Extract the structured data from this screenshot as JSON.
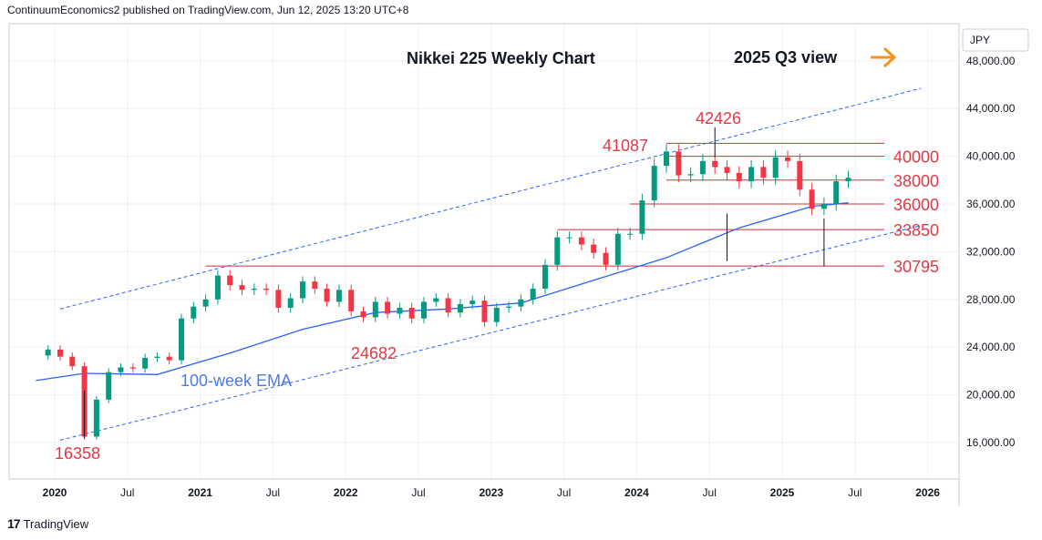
{
  "header": {
    "publisher_line": "ContinuumEconomics2 published on TradingView.com, Jun 12, 2025 13:20 UTC+8"
  },
  "footer": {
    "logo_mark": "17",
    "brand": "TradingView"
  },
  "colors": {
    "candle_up": "#089981",
    "candle_down": "#f23645",
    "ema": "#2962ff",
    "level_line": "#e0283a",
    "channel": "#2962ff",
    "label_red": "#e03a47",
    "arrow": "#f7931a",
    "grid": "#eef0f3",
    "axis_border": "#c9ccd3"
  },
  "chart_data": {
    "type": "candlestick",
    "title": "Nikkei 225 Weekly Chart",
    "subtitle": "2025 Q3 view",
    "currency": "JPY",
    "x_axis_labels": [
      "2020",
      "Jul",
      "2021",
      "Jul",
      "2022",
      "Jul",
      "2023",
      "Jul",
      "2024",
      "Jul",
      "2025",
      "Jul",
      "2026"
    ],
    "x_axis_label_dates": [
      "2020-01",
      "2020-07",
      "2021-01",
      "2021-07",
      "2022-01",
      "2022-07",
      "2023-01",
      "2023-07",
      "2024-01",
      "2024-07",
      "2025-01",
      "2025-07",
      "2026-01"
    ],
    "bold_x_labels": [
      "2020",
      "2021",
      "2022",
      "2023",
      "2024",
      "2025",
      "2026"
    ],
    "y_axis_ticks": [
      "16,000.00",
      "20,000.00",
      "24,000.00",
      "28,000.00",
      "32,000.00",
      "36,000.00",
      "40,000.00",
      "44,000.00",
      "48,000.00"
    ],
    "y_tick_values": [
      16000,
      20000,
      24000,
      28000,
      32000,
      36000,
      40000,
      44000,
      48000
    ],
    "ylim": [
      12000,
      51000
    ],
    "xlim": [
      "2019-11",
      "2026-04"
    ],
    "grid": true,
    "horizontal_levels": [
      {
        "label": "41087",
        "value": 41087,
        "from": "2024-03",
        "to": "2025-12"
      },
      {
        "label": "40000",
        "value": 40000,
        "from": "2024-03",
        "to": "2025-12"
      },
      {
        "label": "38000",
        "value": 38000,
        "from": "2024-03",
        "to": "2025-12"
      },
      {
        "label": "36000",
        "value": 36000,
        "from": "2023-12",
        "to": "2025-12"
      },
      {
        "label": "33850",
        "value": 33850,
        "from": "2023-06",
        "to": "2025-12"
      },
      {
        "label": "30795",
        "value": 30795,
        "from": "2021-01",
        "to": "2025-12"
      }
    ],
    "point_labels": [
      {
        "text": "16358",
        "value": 16358,
        "date": "2020-03"
      },
      {
        "text": "24682",
        "value": 24682,
        "date": "2022-03"
      },
      {
        "text": "42426",
        "value": 42426,
        "date": "2024-07"
      },
      {
        "text": "41087",
        "value": 41087,
        "date": "2024-03"
      }
    ],
    "ema_label": "100-week EMA",
    "ema_series": [
      [
        "2019-11",
        21200
      ],
      [
        "2020-03",
        21800
      ],
      [
        "2020-09",
        21700
      ],
      [
        "2021-03",
        23500
      ],
      [
        "2021-09",
        25500
      ],
      [
        "2022-03",
        26900
      ],
      [
        "2022-09",
        27200
      ],
      [
        "2023-03",
        27700
      ],
      [
        "2023-09",
        29600
      ],
      [
        "2024-03",
        31500
      ],
      [
        "2024-09",
        34000
      ],
      [
        "2025-03",
        35800
      ],
      [
        "2025-06",
        36100
      ]
    ],
    "channel_upper": [
      [
        "2020-01",
        27200
      ],
      [
        "2025-12",
        45700
      ]
    ],
    "channel_lower": [
      [
        "2020-01",
        16200
      ],
      [
        "2025-12",
        34200
      ]
    ],
    "price_series": [
      [
        "2019-11",
        23300
      ],
      [
        "2019-12",
        23800
      ],
      [
        "2020-01",
        23200
      ],
      [
        "2020-02",
        22400
      ],
      [
        "2020-03",
        16500
      ],
      [
        "2020-04",
        19600
      ],
      [
        "2020-05",
        21900
      ],
      [
        "2020-06",
        22300
      ],
      [
        "2020-07",
        22200
      ],
      [
        "2020-08",
        23100
      ],
      [
        "2020-09",
        23200
      ],
      [
        "2020-10",
        22900
      ],
      [
        "2020-11",
        26400
      ],
      [
        "2020-12",
        27400
      ],
      [
        "2021-01",
        28000
      ],
      [
        "2021-02",
        30000
      ],
      [
        "2021-03",
        29200
      ],
      [
        "2021-04",
        28800
      ],
      [
        "2021-05",
        28900
      ],
      [
        "2021-06",
        28800
      ],
      [
        "2021-07",
        27300
      ],
      [
        "2021-08",
        28100
      ],
      [
        "2021-09",
        29500
      ],
      [
        "2021-10",
        28900
      ],
      [
        "2021-11",
        27800
      ],
      [
        "2021-12",
        28800
      ],
      [
        "2022-01",
        27000
      ],
      [
        "2022-02",
        26500
      ],
      [
        "2022-03",
        27800
      ],
      [
        "2022-04",
        26800
      ],
      [
        "2022-05",
        27300
      ],
      [
        "2022-06",
        26400
      ],
      [
        "2022-07",
        27800
      ],
      [
        "2022-08",
        28100
      ],
      [
        "2022-09",
        26900
      ],
      [
        "2022-10",
        27600
      ],
      [
        "2022-11",
        27900
      ],
      [
        "2022-12",
        26100
      ],
      [
        "2023-01",
        27300
      ],
      [
        "2023-02",
        27400
      ],
      [
        "2023-03",
        28000
      ],
      [
        "2023-04",
        28900
      ],
      [
        "2023-05",
        30900
      ],
      [
        "2023-06",
        33200
      ],
      [
        "2023-07",
        33200
      ],
      [
        "2023-08",
        32600
      ],
      [
        "2023-09",
        31900
      ],
      [
        "2023-10",
        30900
      ],
      [
        "2023-11",
        33500
      ],
      [
        "2023-12",
        33500
      ],
      [
        "2024-01",
        36300
      ],
      [
        "2024-02",
        39200
      ],
      [
        "2024-03",
        40400
      ],
      [
        "2024-04",
        38400
      ],
      [
        "2024-05",
        38500
      ],
      [
        "2024-06",
        39600
      ],
      [
        "2024-07",
        39100
      ],
      [
        "2024-08",
        38600
      ],
      [
        "2024-09",
        37900
      ],
      [
        "2024-10",
        39100
      ],
      [
        "2024-11",
        38200
      ],
      [
        "2024-12",
        39900
      ],
      [
        "2025-01",
        39600
      ],
      [
        "2025-02",
        37200
      ],
      [
        "2025-03",
        35600
      ],
      [
        "2025-04",
        36000
      ],
      [
        "2025-05",
        37900
      ],
      [
        "2025-06",
        38200
      ]
    ],
    "extreme_wicks": [
      {
        "date": "2024-08",
        "low": 31200
      },
      {
        "date": "2025-04",
        "low": 30795
      },
      {
        "date": "2024-07",
        "high": 42426
      },
      {
        "date": "2020-03",
        "low": 16358
      }
    ]
  }
}
